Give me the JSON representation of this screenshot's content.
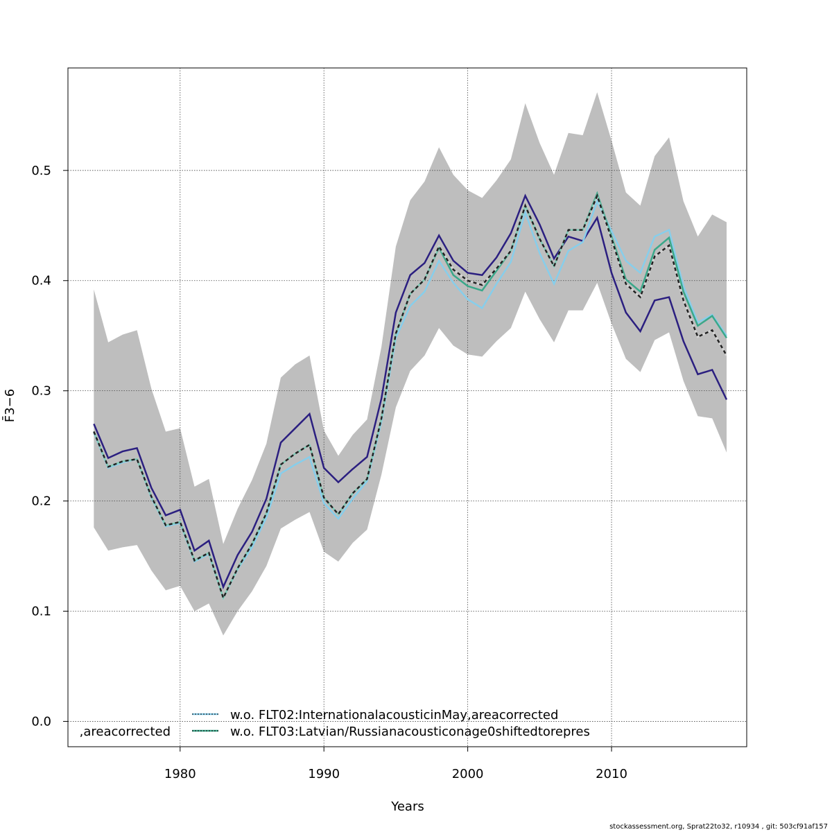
{
  "chart_data": {
    "type": "line",
    "title": "",
    "xlabel": "Years",
    "ylabel": "F̄3−6",
    "ylabel_main": "F",
    "ylabel_sub": "3−6",
    "xlim": [
      1972.2,
      2019.4
    ],
    "ylim": [
      -0.023,
      0.593
    ],
    "xticks": [
      1980,
      1990,
      2000,
      2010
    ],
    "yticks": [
      0.0,
      0.1,
      0.2,
      0.3,
      0.4,
      0.5
    ],
    "ytick_labels": [
      "0.0",
      "0.1",
      "0.2",
      "0.3",
      "0.4",
      "0.5"
    ],
    "grid": true,
    "legend_placement": "bottom-left",
    "x": [
      1974,
      1975,
      1976,
      1977,
      1978,
      1979,
      1980,
      1981,
      1982,
      1983,
      1984,
      1985,
      1986,
      1987,
      1988,
      1989,
      1990,
      1991,
      1992,
      1993,
      1994,
      1995,
      1996,
      1997,
      1998,
      1999,
      2000,
      2001,
      2002,
      2003,
      2004,
      2005,
      2006,
      2007,
      2008,
      2009,
      2010,
      2011,
      2012,
      2013,
      2014,
      2015,
      2016,
      2017,
      2018
    ],
    "band": {
      "color": "#bebebe",
      "upper": [
        0.392,
        0.344,
        0.351,
        0.355,
        0.302,
        0.263,
        0.266,
        0.213,
        0.22,
        0.161,
        0.193,
        0.219,
        0.252,
        0.312,
        0.324,
        0.332,
        0.264,
        0.241,
        0.26,
        0.274,
        0.34,
        0.431,
        0.473,
        0.49,
        0.521,
        0.496,
        0.482,
        0.475,
        0.491,
        0.51,
        0.561,
        0.525,
        0.496,
        0.534,
        0.532,
        0.571,
        0.527,
        0.48,
        0.468,
        0.513,
        0.53,
        0.472,
        0.44,
        0.46,
        0.453
      ],
      "lower": [
        0.176,
        0.155,
        0.158,
        0.16,
        0.137,
        0.119,
        0.123,
        0.1,
        0.107,
        0.078,
        0.1,
        0.118,
        0.141,
        0.175,
        0.183,
        0.19,
        0.154,
        0.145,
        0.162,
        0.174,
        0.224,
        0.285,
        0.318,
        0.332,
        0.357,
        0.341,
        0.333,
        0.331,
        0.345,
        0.357,
        0.39,
        0.365,
        0.344,
        0.373,
        0.373,
        0.398,
        0.361,
        0.329,
        0.317,
        0.346,
        0.353,
        0.309,
        0.277,
        0.275,
        0.244
      ]
    },
    "series": [
      {
        "name": ",areacorrected",
        "color": "#2b1f80",
        "style": "solid",
        "values": [
          0.27,
          0.239,
          0.245,
          0.248,
          0.212,
          0.187,
          0.192,
          0.155,
          0.164,
          0.122,
          0.151,
          0.172,
          0.202,
          0.253,
          0.266,
          0.279,
          0.23,
          0.217,
          0.229,
          0.24,
          0.293,
          0.371,
          0.405,
          0.416,
          0.441,
          0.418,
          0.407,
          0.405,
          0.421,
          0.443,
          0.477,
          0.451,
          0.42,
          0.44,
          0.436,
          0.457,
          0.407,
          0.371,
          0.354,
          0.382,
          0.385,
          0.345,
          0.315,
          0.319,
          0.292
        ]
      },
      {
        "name": "w.o. FLT02:InternationalacousticinMay,areacorrected",
        "color": "#87ceeb",
        "style": "dotted",
        "values": [
          0.262,
          0.23,
          0.235,
          0.238,
          0.203,
          0.177,
          0.18,
          0.145,
          0.152,
          0.112,
          0.138,
          0.158,
          0.185,
          0.225,
          0.233,
          0.24,
          0.198,
          0.184,
          0.202,
          0.218,
          0.272,
          0.348,
          0.377,
          0.39,
          0.418,
          0.398,
          0.383,
          0.375,
          0.397,
          0.417,
          0.462,
          0.425,
          0.397,
          0.427,
          0.435,
          0.472,
          0.445,
          0.418,
          0.407,
          0.44,
          0.446,
          0.395,
          0.362,
          0.369,
          0.35
        ]
      },
      {
        "name": "w.o. FLT03:Latvian/Russianacousticonage0shiftedtorepres",
        "color": "#3aa88a",
        "style": "dotted",
        "values": [
          0.263,
          0.231,
          0.236,
          0.238,
          0.204,
          0.178,
          0.181,
          0.146,
          0.153,
          0.112,
          0.139,
          0.161,
          0.189,
          0.233,
          0.243,
          0.251,
          0.203,
          0.188,
          0.207,
          0.22,
          0.275,
          0.352,
          0.388,
          0.401,
          0.43,
          0.405,
          0.395,
          0.391,
          0.409,
          0.427,
          0.468,
          0.438,
          0.413,
          0.446,
          0.446,
          0.479,
          0.44,
          0.401,
          0.39,
          0.428,
          0.439,
          0.39,
          0.359,
          0.368,
          0.348
        ]
      },
      {
        "color": "#222222",
        "style": "dashed",
        "values": [
          0.263,
          0.231,
          0.236,
          0.238,
          0.204,
          0.178,
          0.181,
          0.146,
          0.153,
          0.112,
          0.139,
          0.161,
          0.189,
          0.233,
          0.243,
          0.251,
          0.203,
          0.188,
          0.207,
          0.22,
          0.275,
          0.352,
          0.388,
          0.401,
          0.431,
          0.41,
          0.4,
          0.396,
          0.411,
          0.427,
          0.468,
          0.438,
          0.413,
          0.446,
          0.446,
          0.477,
          0.438,
          0.397,
          0.385,
          0.422,
          0.432,
          0.382,
          0.349,
          0.355,
          0.332
        ]
      }
    ]
  },
  "legend": {
    "entries": [
      {
        "label": ",areacorrected",
        "color": "#2b1f80"
      },
      {
        "label": "w.o. FLT02:InternationalacousticinMay,areacorrected",
        "color": "#87ceeb"
      },
      {
        "label": "w.o. FLT03:Latvian/Russianacousticonage0shiftedtorepres",
        "color": "#3aa88a"
      }
    ]
  },
  "footer": "stockassessment.org, Sprat22to32, r10934 , git: 503cf91af157"
}
